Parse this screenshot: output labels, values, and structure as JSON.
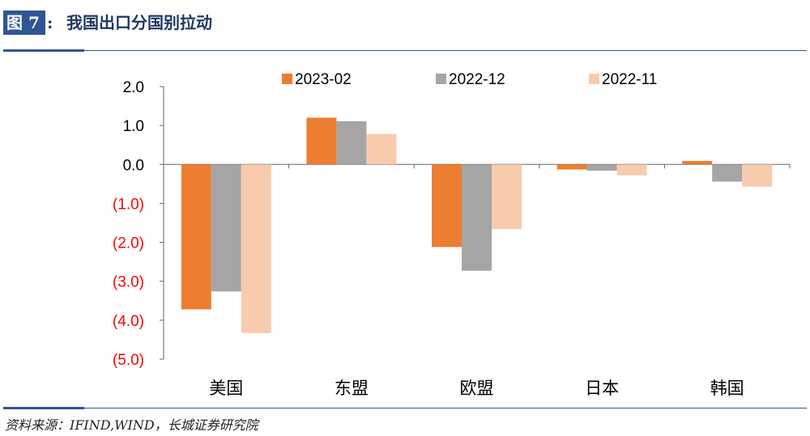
{
  "header": {
    "fig_label": "图 7",
    "colon": ":",
    "title": "我国出口分国别拉动"
  },
  "source": "资料来源：IFIND,WIND，长城证券研究院",
  "chart_data": {
    "type": "bar",
    "categories": [
      "美国",
      "东盟",
      "欧盟",
      "日本",
      "韩国"
    ],
    "series": [
      {
        "name": "2023-02",
        "color": "#ed7d31",
        "values": [
          -3.72,
          1.2,
          -2.12,
          -0.13,
          0.09
        ]
      },
      {
        "name": "2022-12",
        "color": "#a5a5a5",
        "values": [
          -3.26,
          1.11,
          -2.73,
          -0.16,
          -0.44
        ]
      },
      {
        "name": "2022-11",
        "color": "#f8cbad",
        "values": [
          -4.33,
          0.78,
          -1.66,
          -0.28,
          -0.57
        ]
      }
    ],
    "ylim": [
      -5.0,
      2.0
    ],
    "yticks": [
      2.0,
      1.0,
      0.0,
      -1.0,
      -2.0,
      -3.0,
      -4.0,
      -5.0
    ],
    "ytick_labels": [
      "2.0",
      "1.0",
      "0.0",
      "(1.0)",
      "(2.0)",
      "(3.0)",
      "(4.0)",
      "(5.0)"
    ],
    "negative_label_color": "#ff0000",
    "legend_position": "top",
    "grid": false,
    "xlabel": "",
    "ylabel": ""
  }
}
